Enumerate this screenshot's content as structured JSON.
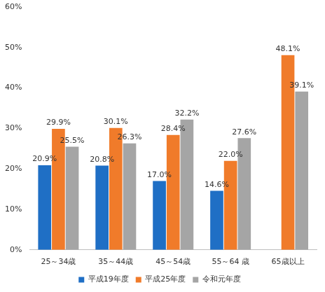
{
  "chart_data": {
    "type": "bar",
    "categories": [
      "25～34歳",
      "35～44歳",
      "45～54歳",
      "55～64 歳",
      "65歳以上"
    ],
    "series": [
      {
        "name": "平成19年度",
        "color": "#1f6fc5",
        "values": [
          20.9,
          20.8,
          17.0,
          14.6,
          null
        ],
        "value_labels": [
          "20.9%",
          "20.8%",
          "17.0%",
          "14.6%",
          null
        ]
      },
      {
        "name": "平成25年度",
        "color": "#f07b2a",
        "values": [
          29.9,
          30.1,
          28.4,
          22.0,
          48.1
        ],
        "value_labels": [
          "29.9%",
          "30.1%",
          "28.4%",
          "22.0%",
          "48.1%"
        ]
      },
      {
        "name": "令和元年度",
        "color": "#a5a5a5",
        "values": [
          25.5,
          26.3,
          32.2,
          27.6,
          39.1
        ],
        "value_labels": [
          "25.5%",
          "26.3%",
          "32.2%",
          "27.6%",
          "39.1%"
        ]
      }
    ],
    "ylim": [
      0,
      60
    ],
    "yticks": [
      {
        "value": 0,
        "label": "0%"
      },
      {
        "value": 10,
        "label": "10%"
      },
      {
        "value": 20,
        "label": "20%"
      },
      {
        "value": 30,
        "label": "30%"
      },
      {
        "value": 40,
        "label": "40%"
      },
      {
        "value": 50,
        "label": "50%"
      },
      {
        "value": 60,
        "label": "60%"
      }
    ],
    "grid": false,
    "legend": "bottom",
    "data_labels": true
  }
}
